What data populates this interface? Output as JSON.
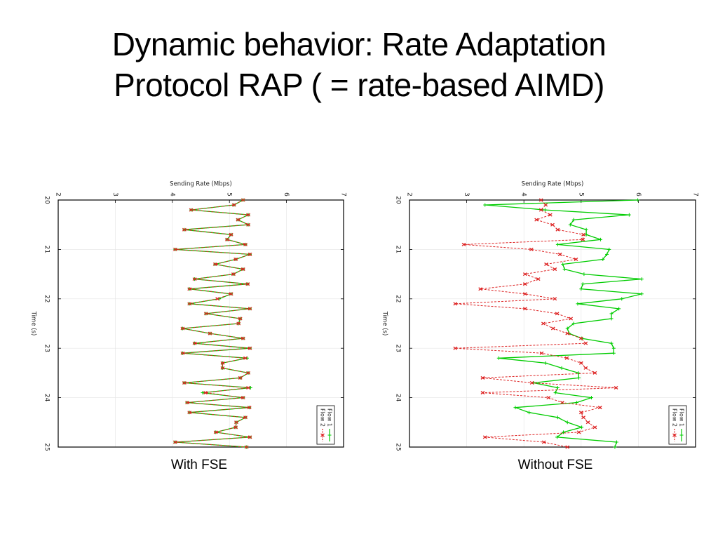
{
  "slide": {
    "title_line1": "Dynamic behavior: Rate Adaptation",
    "title_line2": "Protocol RAP ( = rate-based AIMD)",
    "caption_left": "With FSE",
    "caption_right": "Without FSE"
  },
  "chart_data": [
    {
      "type": "line",
      "orientation": "rotated-90 (time runs top-to-bottom, rate left-to-right)",
      "caption": "With FSE",
      "title": "",
      "xlabel": "Time (s)",
      "ylabel": "Sending Rate (Mbps)",
      "xlim": [
        20,
        25
      ],
      "ylim": [
        2,
        7
      ],
      "x_ticks": [
        "20",
        "21",
        "22",
        "23",
        "24",
        "25"
      ],
      "y_ticks": [
        "2",
        "3",
        "4",
        "5",
        "6",
        "7"
      ],
      "grid": true,
      "legend": {
        "placement": "bottom-right",
        "entries": [
          "Flow 1",
          "Flow 2"
        ]
      },
      "x": [
        20.0,
        20.1,
        20.2,
        20.3,
        20.4,
        20.5,
        20.6,
        20.7,
        20.8,
        20.9,
        21.0,
        21.1,
        21.2,
        21.3,
        21.4,
        21.5,
        21.6,
        21.7,
        21.8,
        21.9,
        22.0,
        22.1,
        22.2,
        22.3,
        22.4,
        22.5,
        22.6,
        22.7,
        22.8,
        22.9,
        23.0,
        23.1,
        23.2,
        23.3,
        23.4,
        23.5,
        23.6,
        23.7,
        23.8,
        23.9,
        24.0,
        24.1,
        24.2,
        24.3,
        24.4,
        24.5,
        24.6,
        24.7,
        24.8,
        24.9,
        25.0
      ],
      "series": [
        {
          "name": "Flow 1",
          "color": "#00cc00",
          "style": "solid",
          "marker": "plus",
          "values": [
            5.24,
            5.08,
            4.33,
            5.33,
            5.15,
            5.33,
            4.21,
            5.03,
            4.96,
            5.28,
            4.05,
            5.36,
            5.11,
            4.75,
            5.24,
            5.07,
            4.39,
            5.32,
            4.3,
            5.03,
            4.82,
            4.3,
            5.36,
            4.59,
            5.19,
            5.16,
            4.18,
            4.66,
            5.24,
            4.39,
            5.36,
            4.18,
            5.31,
            4.88,
            4.88,
            5.33,
            5.19,
            4.21,
            5.37,
            4.53,
            5.24,
            4.26,
            5.35,
            4.3,
            5.28,
            5.12,
            5.11,
            4.76,
            5.36,
            4.05,
            5.3
          ]
        },
        {
          "name": "Flow 2",
          "color": "#dd2222",
          "style": "dashed",
          "marker": "x",
          "values": [
            5.24,
            5.08,
            4.33,
            5.33,
            5.15,
            5.33,
            4.21,
            5.03,
            4.96,
            5.28,
            4.05,
            5.36,
            5.11,
            4.75,
            5.24,
            5.07,
            4.39,
            5.32,
            4.3,
            5.03,
            4.79,
            4.3,
            5.36,
            4.59,
            5.19,
            5.16,
            4.18,
            4.66,
            5.24,
            4.39,
            5.36,
            4.18,
            5.28,
            4.88,
            4.88,
            5.33,
            5.19,
            4.21,
            5.33,
            4.58,
            5.24,
            4.26,
            5.35,
            4.3,
            5.28,
            5.12,
            5.11,
            4.76,
            5.36,
            4.05,
            5.3
          ]
        }
      ]
    },
    {
      "type": "line",
      "orientation": "rotated-90 (time runs top-to-bottom, rate left-to-right)",
      "caption": "Without FSE",
      "title": "",
      "xlabel": "Time (s)",
      "ylabel": "Sending Rate (Mbps)",
      "xlim": [
        20,
        25
      ],
      "ylim": [
        2,
        7
      ],
      "x_ticks": [
        "20",
        "21",
        "22",
        "23",
        "24",
        "25"
      ],
      "y_ticks": [
        "2",
        "3",
        "4",
        "5",
        "6",
        "7"
      ],
      "grid": true,
      "legend": {
        "placement": "bottom-right",
        "entries": [
          "Flow 1",
          "Flow 2"
        ]
      },
      "x": [
        20.0,
        20.1,
        20.2,
        20.3,
        20.4,
        20.5,
        20.6,
        20.7,
        20.8,
        20.9,
        21.0,
        21.1,
        21.2,
        21.3,
        21.4,
        21.5,
        21.6,
        21.7,
        21.8,
        21.9,
        22.0,
        22.1,
        22.2,
        22.3,
        22.4,
        22.5,
        22.6,
        22.7,
        22.8,
        22.9,
        23.0,
        23.1,
        23.2,
        23.3,
        23.4,
        23.5,
        23.6,
        23.7,
        23.8,
        23.9,
        24.0,
        24.1,
        24.2,
        24.3,
        24.4,
        24.5,
        24.6,
        24.7,
        24.8,
        24.9,
        25.0
      ],
      "series": [
        {
          "name": "Flow 1",
          "color": "#00cc00",
          "style": "solid",
          "marker": "plus",
          "values": [
            5.99,
            3.32,
            4.37,
            5.84,
            4.87,
            4.81,
            5.09,
            5.09,
            5.34,
            4.59,
            5.49,
            5.45,
            5.38,
            4.68,
            4.71,
            5.05,
            6.06,
            5.03,
            5.0,
            6.06,
            5.71,
            4.94,
            5.66,
            5.53,
            5.53,
            4.87,
            4.76,
            4.79,
            5.01,
            5.53,
            5.57,
            5.57,
            3.56,
            4.38,
            4.66,
            4.95,
            4.96,
            4.17,
            4.59,
            4.55,
            5.18,
            4.92,
            3.85,
            4.09,
            4.59,
            4.76,
            5.01,
            4.69,
            4.58,
            5.62,
            5.59
          ]
        },
        {
          "name": "Flow 2",
          "color": "#dd2222",
          "style": "dashed",
          "marker": "x",
          "values": [
            4.3,
            4.38,
            4.3,
            4.46,
            4.22,
            4.5,
            4.59,
            5.04,
            5.03,
            2.95,
            4.13,
            4.63,
            4.91,
            4.39,
            4.54,
            4.02,
            4.25,
            4.02,
            3.24,
            4.02,
            4.54,
            2.8,
            4.02,
            4.58,
            4.82,
            4.34,
            4.51,
            4.76,
            5.0,
            5.08,
            2.8,
            4.31,
            4.75,
            5.0,
            5.08,
            5.24,
            3.28,
            4.14,
            5.61,
            3.28,
            4.43,
            4.67,
            5.33,
            5.0,
            5.04,
            5.12,
            5.24,
            4.96,
            3.32,
            4.35,
            4.76
          ]
        }
      ]
    }
  ]
}
